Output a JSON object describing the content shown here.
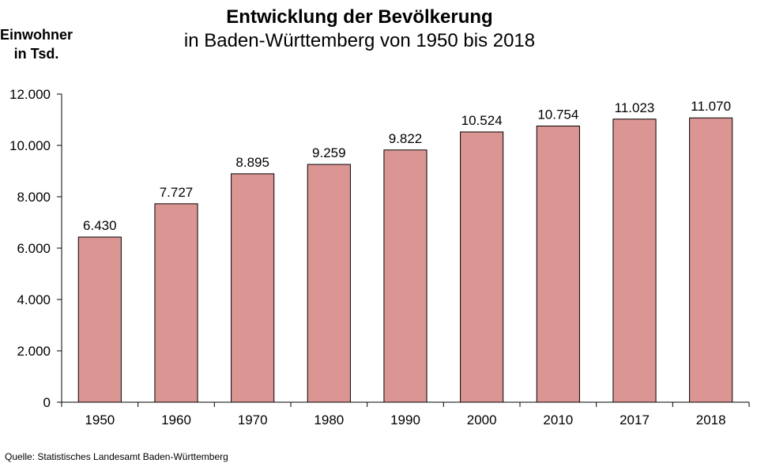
{
  "chart_data": {
    "type": "bar",
    "title": "Entwicklung der Bevölkerung",
    "subtitle": "in Baden-Württemberg von 1950 bis 2018",
    "ylabel_line1": "Einwohner",
    "ylabel_line2": "in Tsd.",
    "xlabel": "",
    "categories": [
      "1950",
      "1960",
      "1970",
      "1980",
      "1990",
      "2000",
      "2010",
      "2017",
      "2018"
    ],
    "values": [
      6430,
      7727,
      8895,
      9259,
      9822,
      10524,
      10754,
      11023,
      11070
    ],
    "value_labels": [
      "6.430",
      "7.727",
      "8.895",
      "9.259",
      "9.822",
      "10.524",
      "10.754",
      "11.023",
      "11.070"
    ],
    "ylim": [
      0,
      12000
    ],
    "yticks": [
      0,
      2000,
      4000,
      6000,
      8000,
      10000,
      12000
    ],
    "ytick_labels": [
      "0",
      "2.000",
      "4.000",
      "6.000",
      "8.000",
      "10.000",
      "12.000"
    ],
    "grid": false,
    "legend": "none",
    "bar_color": "#db9694",
    "bar_edge_color": "#000000"
  },
  "source": "Quelle: Statistisches Landesamt Baden-Württemberg"
}
